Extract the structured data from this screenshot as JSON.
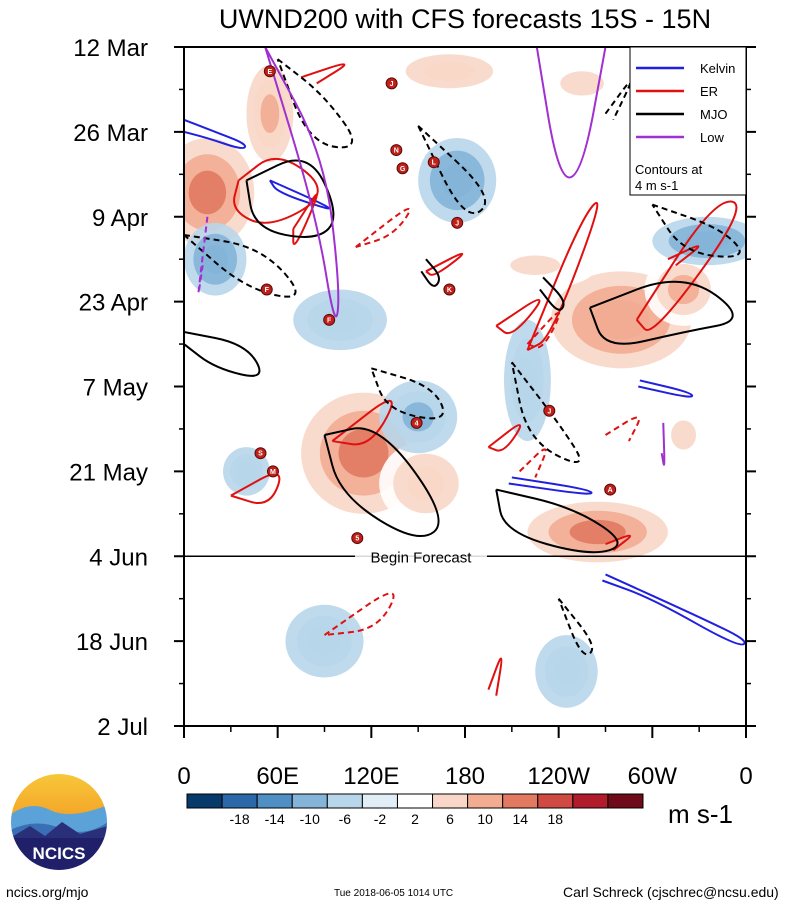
{
  "chart_data": {
    "type": "heatmap",
    "title": "UWND200 with CFS forecasts  15S - 15N",
    "x_tick_labels": [
      "0",
      "60E",
      "120E",
      "180",
      "120W",
      "60W",
      "0"
    ],
    "x_tick_degrees": [
      0,
      60,
      120,
      180,
      240,
      300,
      360
    ],
    "y_tick_labels": [
      "12 Mar",
      "26 Mar",
      "9 Apr",
      "23 Apr",
      "7 May",
      "21 May",
      "4 Jun",
      "18 Jun",
      "2 Jul"
    ],
    "y_tick_day_offsets": [
      0,
      14,
      28,
      42,
      56,
      70,
      84,
      98,
      112
    ],
    "forecast_line": {
      "day_offset": 84,
      "label": "Begin Forecast"
    },
    "legend": {
      "placement": "top-right",
      "entries": [
        {
          "name": "Kelvin",
          "color": "#2020e0"
        },
        {
          "name": "ER",
          "color": "#e01010"
        },
        {
          "name": "MJO",
          "color": "#000000"
        },
        {
          "name": "Low",
          "color": "#a030d0"
        }
      ],
      "note_line1": "Contours at",
      "note_line2": "4 m s-1"
    },
    "colorbar": {
      "units": "m s-1",
      "levels": [
        "-18",
        "-14",
        "-10",
        "-6",
        "-2",
        "2",
        "6",
        "10",
        "14",
        "18"
      ],
      "colors": [
        "#063a6b",
        "#2b68a8",
        "#4f8fc4",
        "#84b4d8",
        "#b8d6ea",
        "#e2eef5",
        "#ffffff",
        "#f8d7c8",
        "#f1ac92",
        "#e27a62",
        "#cf4a43",
        "#b01c2c",
        "#6e0a1a"
      ]
    },
    "anomaly_blobs": [
      {
        "lon": 15,
        "day": 24,
        "rlon": 30,
        "rday": 9,
        "value": 14
      },
      {
        "lon": 55,
        "day": 11,
        "rlon": 15,
        "rday": 8,
        "value": 12
      },
      {
        "lon": 170,
        "day": 4,
        "rlon": 40,
        "rday": 4,
        "value": 8
      },
      {
        "lon": 255,
        "day": 6,
        "rlon": 35,
        "rday": 5,
        "value": 7
      },
      {
        "lon": 280,
        "day": 45,
        "rlon": 45,
        "rday": 8,
        "value": 13
      },
      {
        "lon": 320,
        "day": 40,
        "rlon": 25,
        "rday": 6,
        "value": 10
      },
      {
        "lon": 115,
        "day": 67,
        "rlon": 40,
        "rday": 10,
        "value": 15
      },
      {
        "lon": 155,
        "day": 72,
        "rlon": 30,
        "rday": 7,
        "value": 9
      },
      {
        "lon": 265,
        "day": 80,
        "rlon": 45,
        "rday": 5,
        "value": 14
      },
      {
        "lon": 320,
        "day": 64,
        "rlon": 20,
        "rday": 6,
        "value": 6
      },
      {
        "lon": 225,
        "day": 36,
        "rlon": 40,
        "rday": 4,
        "value": 6
      },
      {
        "lon": 20,
        "day": 35,
        "rlon": 20,
        "rday": 6,
        "value": -10
      },
      {
        "lon": 175,
        "day": 22,
        "rlon": 25,
        "rday": 7,
        "value": -9
      },
      {
        "lon": 335,
        "day": 32,
        "rlon": 35,
        "rday": 4,
        "value": -8
      },
      {
        "lon": 150,
        "day": 61,
        "rlon": 25,
        "rday": 6,
        "value": -7
      },
      {
        "lon": 220,
        "day": 55,
        "rlon": 15,
        "rday": 10,
        "value": -6
      },
      {
        "lon": 90,
        "day": 98,
        "rlon": 25,
        "rday": 6,
        "value": -6
      },
      {
        "lon": 245,
        "day": 103,
        "rlon": 20,
        "rday": 6,
        "value": -5
      },
      {
        "lon": 40,
        "day": 70,
        "rlon": 15,
        "rday": 4,
        "value": -6
      },
      {
        "lon": 100,
        "day": 45,
        "rlon": 30,
        "rday": 5,
        "value": -4
      }
    ],
    "contours": [
      {
        "wave": "Kelvin",
        "points": [
          [
            0,
            12
          ],
          [
            20,
            14
          ],
          [
            40,
            16
          ],
          [
            38,
            17
          ],
          [
            15,
            15
          ],
          [
            0,
            14
          ]
        ]
      },
      {
        "wave": "Kelvin",
        "points": [
          [
            55,
            22
          ],
          [
            90,
            26
          ],
          [
            95,
            27
          ],
          [
            60,
            24
          ],
          [
            55,
            22
          ]
        ]
      },
      {
        "wave": "Kelvin",
        "points": [
          [
            270,
            87
          ],
          [
            330,
            94
          ],
          [
            362,
            98
          ],
          [
            355,
            99
          ],
          [
            300,
            91
          ],
          [
            268,
            88
          ]
        ]
      },
      {
        "wave": "Kelvin",
        "points": [
          [
            210,
            71
          ],
          [
            260,
            73
          ],
          [
            262,
            74
          ],
          [
            208,
            72
          ]
        ]
      },
      {
        "wave": "Kelvin",
        "points": [
          [
            292,
            55
          ],
          [
            325,
            57
          ],
          [
            326,
            58
          ],
          [
            291,
            56
          ]
        ]
      },
      {
        "wave": "ER",
        "points": [
          [
            35,
            22
          ],
          [
            60,
            17
          ],
          [
            95,
            24
          ],
          [
            55,
            30
          ],
          [
            30,
            27
          ],
          [
            35,
            22
          ]
        ]
      },
      {
        "wave": "ER",
        "points": [
          [
            70,
            30
          ],
          [
            90,
            22
          ],
          [
            70,
            34
          ],
          [
            70,
            30
          ]
        ]
      },
      {
        "wave": "ER",
        "points": [
          [
            220,
            50
          ],
          [
            255,
            28
          ],
          [
            270,
            24
          ],
          [
            235,
            48
          ],
          [
            220,
            50
          ]
        ]
      },
      {
        "wave": "ER",
        "points": [
          [
            290,
            45
          ],
          [
            340,
            25
          ],
          [
            362,
            26
          ],
          [
            300,
            48
          ],
          [
            290,
            45
          ]
        ]
      },
      {
        "wave": "ER",
        "points": [
          [
            155,
            37
          ],
          [
            185,
            33
          ],
          [
            160,
            38
          ],
          [
            155,
            37
          ]
        ]
      },
      {
        "wave": "ER",
        "points": [
          [
            200,
            46
          ],
          [
            235,
            40
          ],
          [
            210,
            48
          ],
          [
            200,
            46
          ]
        ]
      },
      {
        "wave": "ER",
        "points": [
          [
            95,
            65
          ],
          [
            140,
            56
          ],
          [
            120,
            66
          ],
          [
            95,
            65
          ]
        ]
      },
      {
        "wave": "ER",
        "points": [
          [
            195,
            66
          ],
          [
            220,
            61
          ],
          [
            205,
            67
          ],
          [
            195,
            66
          ]
        ]
      },
      {
        "wave": "ER",
        "points": [
          [
            30,
            74
          ],
          [
            65,
            69
          ],
          [
            55,
            76
          ],
          [
            30,
            74
          ]
        ]
      },
      {
        "wave": "ER",
        "points": [
          [
            195,
            106
          ],
          [
            205,
            99
          ],
          [
            200,
            107
          ]
        ]
      },
      {
        "wave": "ER",
        "points": [
          [
            75,
            5
          ],
          [
            110,
            2
          ],
          [
            85,
            6
          ]
        ]
      },
      {
        "wave": "ER",
        "points": [
          [
            270,
            82
          ],
          [
            290,
            80
          ],
          [
            275,
            83
          ]
        ]
      },
      {
        "wave": "ER",
        "points": [
          [
            310,
            35
          ],
          [
            335,
            32
          ],
          [
            315,
            36
          ]
        ]
      },
      {
        "wave": "ER-dashed",
        "points": [
          [
            110,
            33
          ],
          [
            150,
            25
          ],
          [
            135,
            31
          ],
          [
            110,
            33
          ]
        ]
      },
      {
        "wave": "ER-dashed",
        "points": [
          [
            220,
            49
          ],
          [
            245,
            42
          ],
          [
            230,
            50
          ],
          [
            220,
            49
          ]
        ]
      },
      {
        "wave": "ER-dashed",
        "points": [
          [
            90,
            97
          ],
          [
            140,
            88
          ],
          [
            125,
            96
          ],
          [
            90,
            97
          ]
        ]
      },
      {
        "wave": "ER-dashed",
        "points": [
          [
            215,
            70
          ],
          [
            235,
            65
          ],
          [
            225,
            71
          ]
        ]
      },
      {
        "wave": "ER-dashed",
        "points": [
          [
            270,
            64
          ],
          [
            295,
            60
          ],
          [
            285,
            65
          ]
        ]
      },
      {
        "wave": "MJO",
        "points": [
          [
            40,
            22
          ],
          [
            80,
            17
          ],
          [
            100,
            28
          ],
          [
            85,
            32
          ],
          [
            45,
            30
          ],
          [
            40,
            22
          ]
        ]
      },
      {
        "wave": "MJO",
        "points": [
          [
            90,
            64
          ],
          [
            125,
            62
          ],
          [
            170,
            78
          ],
          [
            150,
            82
          ],
          [
            100,
            74
          ],
          [
            90,
            64
          ]
        ]
      },
      {
        "wave": "MJO",
        "points": [
          [
            200,
            73
          ],
          [
            250,
            76
          ],
          [
            285,
            82
          ],
          [
            260,
            84
          ],
          [
            205,
            80
          ],
          [
            200,
            73
          ]
        ]
      },
      {
        "wave": "MJO",
        "points": [
          [
            260,
            43
          ],
          [
            320,
            37
          ],
          [
            362,
            45
          ],
          [
            320,
            47
          ],
          [
            270,
            50
          ],
          [
            260,
            43
          ]
        ]
      },
      {
        "wave": "MJO",
        "points": [
          [
            0,
            47
          ],
          [
            40,
            49
          ],
          [
            53,
            55
          ],
          [
            20,
            53
          ],
          [
            0,
            49
          ]
        ]
      },
      {
        "wave": "MJO",
        "points": [
          [
            230,
            38
          ],
          [
            245,
            42
          ],
          [
            240,
            44
          ],
          [
            228,
            40
          ]
        ]
      },
      {
        "wave": "MJO",
        "points": [
          [
            155,
            35
          ],
          [
            165,
            38
          ],
          [
            160,
            40
          ],
          [
            152,
            37
          ]
        ]
      },
      {
        "wave": "MJO-dashed",
        "points": [
          [
            60,
            2
          ],
          [
            90,
            8
          ],
          [
            115,
            17
          ],
          [
            80,
            16
          ],
          [
            60,
            2
          ]
        ]
      },
      {
        "wave": "MJO-dashed",
        "points": [
          [
            0,
            31
          ],
          [
            50,
            33
          ],
          [
            80,
            42
          ],
          [
            40,
            40
          ],
          [
            0,
            31
          ]
        ]
      },
      {
        "wave": "MJO-dashed",
        "points": [
          [
            150,
            13
          ],
          [
            200,
            25
          ],
          [
            180,
            29
          ],
          [
            150,
            13
          ]
        ]
      },
      {
        "wave": "MJO-dashed",
        "points": [
          [
            120,
            53
          ],
          [
            160,
            56
          ],
          [
            170,
            62
          ],
          [
            130,
            60
          ],
          [
            120,
            53
          ]
        ]
      },
      {
        "wave": "MJO-dashed",
        "points": [
          [
            210,
            52
          ],
          [
            240,
            62
          ],
          [
            260,
            70
          ],
          [
            220,
            65
          ],
          [
            210,
            52
          ]
        ]
      },
      {
        "wave": "MJO-dashed",
        "points": [
          [
            300,
            26
          ],
          [
            345,
            30
          ],
          [
            362,
            35
          ],
          [
            320,
            34
          ],
          [
            300,
            26
          ]
        ]
      },
      {
        "wave": "MJO-dashed",
        "points": [
          [
            240,
            91
          ],
          [
            265,
            99
          ],
          [
            255,
            101
          ],
          [
            240,
            91
          ]
        ]
      },
      {
        "wave": "MJO-dashed",
        "points": [
          [
            270,
            11
          ],
          [
            290,
            4
          ],
          [
            275,
            12
          ]
        ]
      },
      {
        "wave": "Low",
        "points": [
          [
            52,
            0
          ],
          [
            90,
            18
          ],
          [
            100,
            40
          ],
          [
            97,
            47
          ],
          [
            85,
            28
          ],
          [
            52,
            0
          ]
        ]
      },
      {
        "wave": "Low",
        "points": [
          [
            226,
            0
          ],
          [
            240,
            22
          ],
          [
            255,
            21
          ],
          [
            270,
            0
          ]
        ]
      },
      {
        "wave": "Low",
        "points": [
          [
            15,
            28
          ],
          [
            8,
            43
          ],
          [
            12,
            36
          ]
        ]
      },
      {
        "wave": "Low",
        "points": [
          [
            307,
            62
          ],
          [
            308,
            70
          ],
          [
            306,
            67
          ]
        ]
      }
    ],
    "storm_markers": [
      "E",
      "J",
      "N",
      "G",
      "L",
      "J",
      "K",
      "F",
      "F",
      "4",
      "J",
      "S",
      "M",
      "A",
      "5"
    ],
    "storm_positions": [
      [
        55,
        4
      ],
      [
        133,
        6
      ],
      [
        136,
        17
      ],
      [
        140,
        20
      ],
      [
        160,
        19
      ],
      [
        175,
        29
      ],
      [
        170,
        40
      ],
      [
        53,
        40
      ],
      [
        93,
        45
      ],
      [
        149,
        62
      ],
      [
        234,
        60
      ],
      [
        49,
        67
      ],
      [
        57,
        70
      ],
      [
        273,
        73
      ],
      [
        111,
        81
      ]
    ]
  },
  "footer": {
    "logo_text": "NCICS",
    "url_text": "ncics.org/mjo",
    "timestamp": "Tue 2018-06-05 1014 UTC",
    "credit": "Carl Schreck (cjschrec@ncsu.edu)"
  }
}
